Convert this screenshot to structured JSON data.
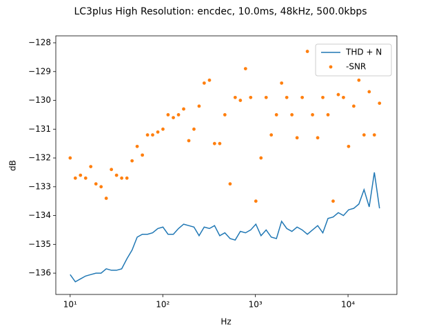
{
  "chart_data": {
    "type": "line",
    "title": "LC3plus High Resolution: encdec, 10.0ms, 48kHz, 500.0kbps",
    "xlabel": "Hz",
    "ylabel": "dB",
    "xscale": "log",
    "xlim": [
      7,
      33700
    ],
    "ylim": [
      -136.74,
      -127.76
    ],
    "xticks": [
      {
        "value": 10,
        "label": "10¹"
      },
      {
        "value": 100,
        "label": "10²"
      },
      {
        "value": 1000,
        "label": "10³"
      },
      {
        "value": 10000,
        "label": "10⁴"
      }
    ],
    "yticks": [
      {
        "value": -128,
        "label": "−128"
      },
      {
        "value": -129,
        "label": "−129"
      },
      {
        "value": -130,
        "label": "−130"
      },
      {
        "value": -131,
        "label": "−131"
      },
      {
        "value": -132,
        "label": "−132"
      },
      {
        "value": -133,
        "label": "−133"
      },
      {
        "value": -134,
        "label": "−134"
      },
      {
        "value": -135,
        "label": "−135"
      },
      {
        "value": -136,
        "label": "−136"
      }
    ],
    "legend": "upper right",
    "x": [
      10,
      11.37,
      12.92,
      14.69,
      16.69,
      18.98,
      21.57,
      24.52,
      27.87,
      31.68,
      36,
      41,
      46.6,
      52.9,
      60.2,
      68.4,
      77.7,
      88.4,
      100.4,
      114,
      130,
      147.8,
      168,
      191,
      217,
      246.6,
      280,
      319,
      362,
      412,
      468,
      533,
      605,
      688,
      782,
      889,
      1011,
      1149,
      1306,
      1484,
      1687,
      1918,
      2180,
      2478,
      2817,
      3202,
      3640,
      4137,
      4703,
      5345,
      6076,
      6906,
      7850,
      8923,
      10140,
      11530,
      13100,
      14890,
      16930,
      19240,
      21870
    ],
    "series": [
      {
        "name": "THD + N",
        "type": "line",
        "color": "#1f77b4",
        "values": [
          -136.05,
          -136.3,
          -136.2,
          -136.1,
          -136.05,
          -136.0,
          -136.0,
          -135.85,
          -135.9,
          -135.9,
          -135.85,
          -135.5,
          -135.2,
          -134.75,
          -134.65,
          -134.65,
          -134.6,
          -134.45,
          -134.4,
          -134.65,
          -134.65,
          -134.45,
          -134.3,
          -134.35,
          -134.4,
          -134.7,
          -134.4,
          -134.45,
          -134.35,
          -134.7,
          -134.6,
          -134.8,
          -134.85,
          -134.55,
          -134.6,
          -134.5,
          -134.3,
          -134.7,
          -134.5,
          -134.75,
          -134.8,
          -134.2,
          -134.45,
          -134.55,
          -134.4,
          -134.5,
          -134.65,
          -134.5,
          -134.35,
          -134.6,
          -134.1,
          -134.05,
          -133.9,
          -134.0,
          -133.8,
          -133.75,
          -133.6,
          -133.1,
          -133.7,
          -132.5,
          -133.75
        ]
      },
      {
        "name": "-SNR",
        "type": "scatter",
        "color": "#ff7f0e",
        "values": [
          -132.0,
          -132.7,
          -132.6,
          -132.7,
          -132.3,
          -132.9,
          -133.0,
          -133.4,
          -132.4,
          -132.6,
          -132.7,
          -132.7,
          -132.1,
          -131.6,
          -131.9,
          -131.2,
          -131.2,
          -131.1,
          -131.0,
          -130.5,
          -130.6,
          -130.5,
          -130.3,
          -131.4,
          -131.0,
          -130.2,
          -129.4,
          -129.3,
          -131.5,
          -131.5,
          -130.5,
          -132.9,
          -129.9,
          -130.0,
          -128.9,
          -129.9,
          -133.5,
          -132.0,
          -129.9,
          -131.2,
          -130.5,
          -129.4,
          -129.9,
          -130.5,
          -131.3,
          -129.9,
          -128.3,
          -130.5,
          -131.3,
          -129.9,
          -130.5,
          -133.5,
          -129.8,
          -129.9,
          -131.6,
          -130.2,
          -129.3,
          -131.2,
          -129.7,
          -131.2,
          -130.1
        ]
      }
    ]
  }
}
